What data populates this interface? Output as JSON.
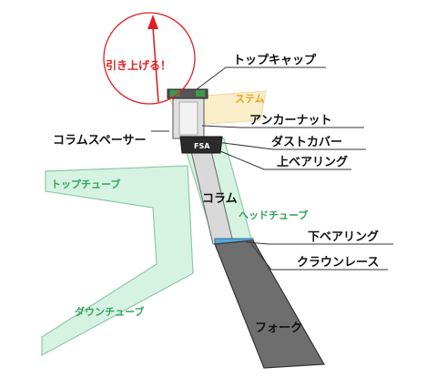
{
  "parts": {
    "top_cap": "トップキャップ",
    "stem": "ステム",
    "anchor_nut": "アンカーナット",
    "column_spacer": "コラムスペーサー",
    "dust_cover": "ダストカバー",
    "upper_bearing": "上ベアリング",
    "column": "コラム",
    "head_tube": "ヘッドチューブ",
    "top_tube": "トップチューブ",
    "lower_bearing": "下ベアリング",
    "crown_race": "クラウンレース",
    "down_tube": "ダウンチューブ",
    "fork": "フォーク"
  },
  "pull_up": "引き上げる！",
  "brand": "FSA",
  "colors": {
    "tube_fill": "#d6f2e3",
    "tube_stroke": "#8fc9a8",
    "stem_fill": "#fbedc6",
    "fork_fill": "#6e6e6e",
    "bearing_blue": "#5aa7d6",
    "arrow_red": "#e02020",
    "green_text": "#2fa35a"
  }
}
